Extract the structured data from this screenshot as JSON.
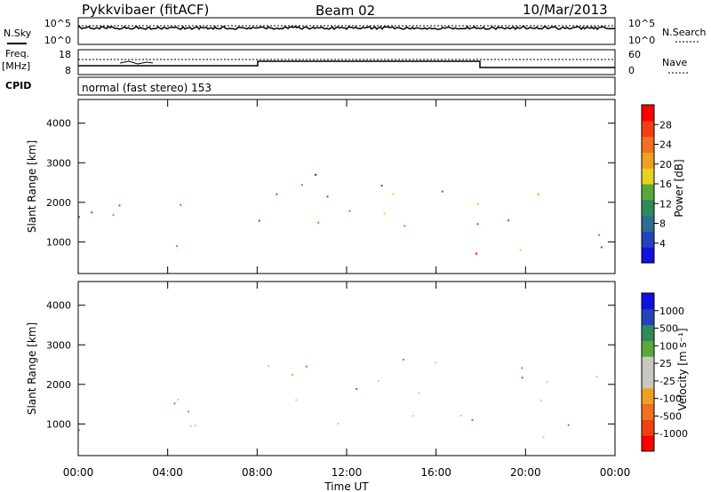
{
  "header": {
    "title": "Pykkvibaer (fitACF)",
    "beam": "Beam 02",
    "date": "10/Mar/2013"
  },
  "top_panels": {
    "nsky_label": "N.Sky",
    "nsearch_label": "N.Search",
    "noise_ticks_left": [
      "10^5",
      "10^0"
    ],
    "noise_ticks_right": [
      "10^5",
      "10^0"
    ],
    "freq_label": "Freq.",
    "freq_unit": "[MHz]",
    "freq_ticks": [
      "18",
      "8"
    ],
    "nave_label": "Nave",
    "nave_ticks": [
      "60",
      "0"
    ],
    "cpid_label": "CPID",
    "cpid_text": "normal (fast stereo) 153"
  },
  "colors": {
    "power_scale": [
      "#1010e0",
      "#2244bb",
      "#2e6e8e",
      "#2f8a5a",
      "#5aa838",
      "#e8d020",
      "#f0a020",
      "#f07020",
      "#f04010",
      "#ff0000"
    ],
    "velocity_scale": [
      "#ff0000",
      "#f04010",
      "#f07020",
      "#f0a020",
      "#c8c8c0",
      "#c8c8c0",
      "#5aa838",
      "#2f8a5a",
      "#2244bb",
      "#1010e0"
    ]
  },
  "chart_data": [
    {
      "type": "heatmap",
      "name_panel": "power",
      "ylabel": "Slant Range [km]",
      "y_ticks": [
        "4000",
        "3000",
        "2000",
        "1000"
      ],
      "ylim": [
        200,
        4600
      ],
      "colorbar_label": "Power [dB]",
      "colorbar_ticks": [
        "28",
        "24",
        "20",
        "16",
        "12",
        "8",
        "4"
      ],
      "x_ticks": [
        "00:00",
        "04:00",
        "08:00",
        "12:00",
        "16:00",
        "20:00",
        "00:00"
      ]
    },
    {
      "type": "heatmap",
      "name_panel": "velocity",
      "ylabel": "Slant Range [km]",
      "y_ticks": [
        "4000",
        "3000",
        "2000",
        "1000"
      ],
      "ylim": [
        200,
        4600
      ],
      "colorbar_label": "Velocity [m s⁻¹]",
      "colorbar_ticks": [
        "1000",
        "500",
        "100",
        "25",
        "-25",
        "-100",
        "-500",
        "-1000"
      ],
      "x_ticks": [
        "00:00",
        "04:00",
        "08:00",
        "12:00",
        "16:00",
        "20:00",
        "00:00"
      ],
      "xlabel": "Time UT"
    }
  ]
}
